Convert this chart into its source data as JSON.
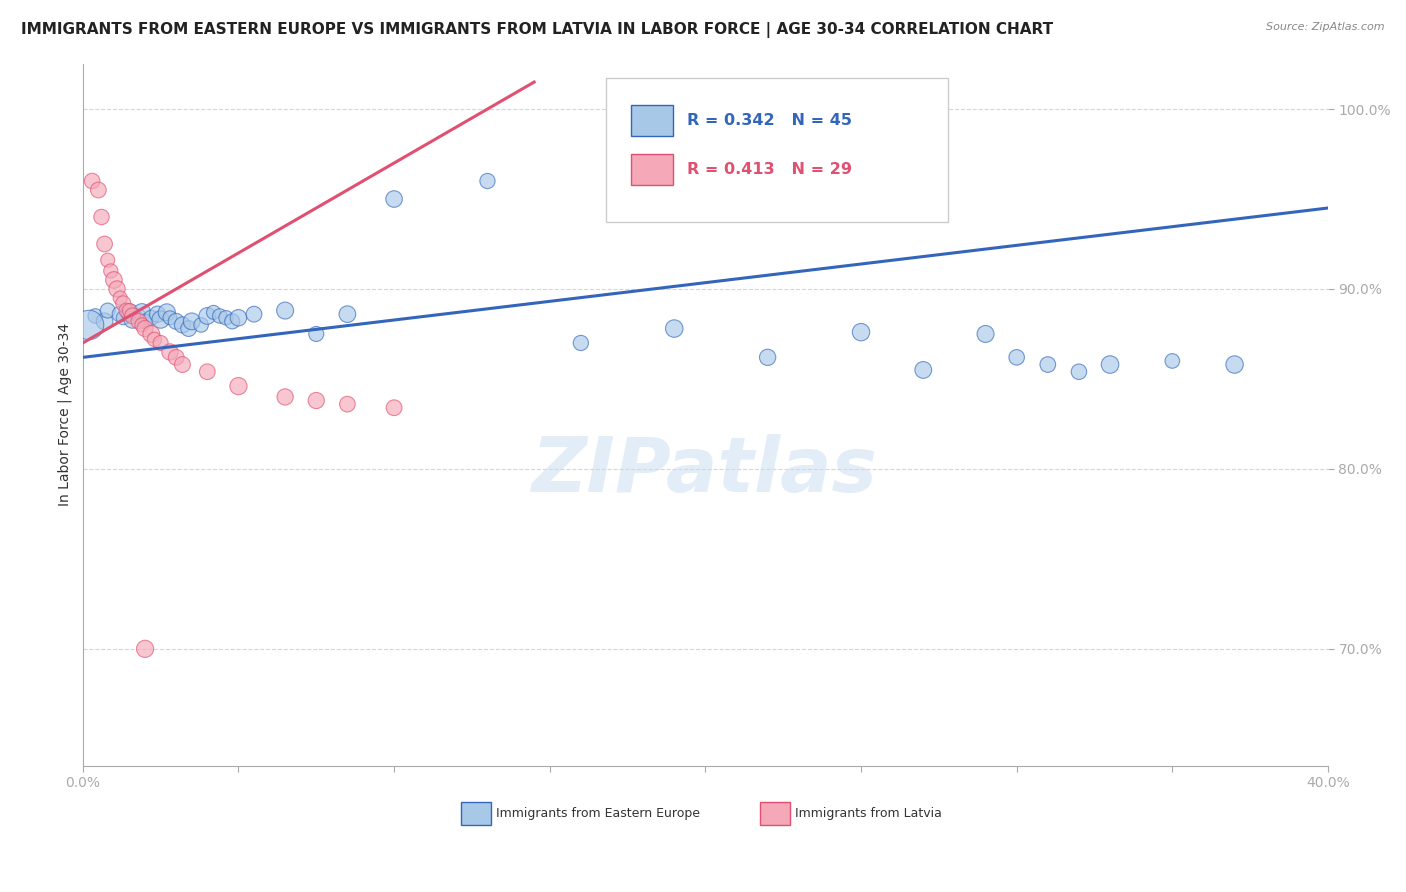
{
  "title": "IMMIGRANTS FROM EASTERN EUROPE VS IMMIGRANTS FROM LATVIA IN LABOR FORCE | AGE 30-34 CORRELATION CHART",
  "source": "Source: ZipAtlas.com",
  "ylabel": "In Labor Force | Age 30-34",
  "xlim": [
    0.0,
    0.4
  ],
  "ylim": [
    0.635,
    1.025
  ],
  "blue_color": "#A8C8E8",
  "pink_color": "#F4A8B8",
  "blue_line_color": "#3366BB",
  "pink_line_color": "#E05070",
  "legend_r_blue": "R = 0.342",
  "legend_n_blue": "N = 45",
  "legend_r_pink": "R = 0.413",
  "legend_n_pink": "N = 29",
  "blue_scatter_x": [
    0.004,
    0.007,
    0.008,
    0.012,
    0.013,
    0.015,
    0.016,
    0.018,
    0.019,
    0.02,
    0.022,
    0.024,
    0.025,
    0.027,
    0.028,
    0.03,
    0.032,
    0.034,
    0.035,
    0.038,
    0.04,
    0.042,
    0.044,
    0.046,
    0.048,
    0.05,
    0.055,
    0.065,
    0.075,
    0.085,
    0.1,
    0.13,
    0.16,
    0.19,
    0.22,
    0.25,
    0.27,
    0.29,
    0.3,
    0.31,
    0.32,
    0.33,
    0.35,
    0.37,
    0.002
  ],
  "blue_scatter_y": [
    0.885,
    0.882,
    0.888,
    0.886,
    0.884,
    0.887,
    0.883,
    0.885,
    0.887,
    0.882,
    0.884,
    0.886,
    0.883,
    0.887,
    0.884,
    0.882,
    0.88,
    0.878,
    0.882,
    0.88,
    0.885,
    0.887,
    0.885,
    0.884,
    0.882,
    0.884,
    0.886,
    0.888,
    0.875,
    0.886,
    0.95,
    0.96,
    0.87,
    0.878,
    0.862,
    0.876,
    0.855,
    0.875,
    0.862,
    0.858,
    0.854,
    0.858,
    0.86,
    0.858,
    0.88
  ],
  "pink_scatter_x": [
    0.003,
    0.005,
    0.006,
    0.007,
    0.008,
    0.009,
    0.01,
    0.011,
    0.012,
    0.013,
    0.014,
    0.015,
    0.016,
    0.018,
    0.019,
    0.02,
    0.022,
    0.023,
    0.025,
    0.028,
    0.03,
    0.032,
    0.04,
    0.05,
    0.065,
    0.075,
    0.085,
    0.1,
    0.02
  ],
  "pink_scatter_y": [
    0.96,
    0.955,
    0.94,
    0.925,
    0.916,
    0.91,
    0.905,
    0.9,
    0.895,
    0.892,
    0.888,
    0.888,
    0.885,
    0.882,
    0.88,
    0.878,
    0.875,
    0.872,
    0.87,
    0.865,
    0.862,
    0.858,
    0.854,
    0.846,
    0.84,
    0.838,
    0.836,
    0.834,
    0.7
  ],
  "blue_line_x0": 0.0,
  "blue_line_x1": 0.4,
  "blue_line_y0": 0.862,
  "blue_line_y1": 0.945,
  "pink_line_x0": 0.0,
  "pink_line_x1": 0.145,
  "pink_line_y0": 0.87,
  "pink_line_y1": 1.015,
  "watermark": "ZIPatlas",
  "title_fontsize": 11,
  "axis_label_fontsize": 10,
  "tick_fontsize": 10,
  "source_fontsize": 8
}
